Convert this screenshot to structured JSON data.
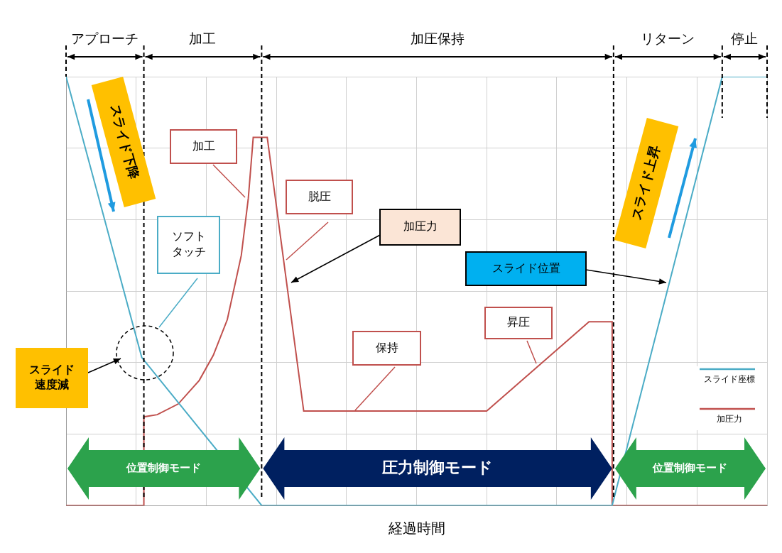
{
  "chart_data": {
    "type": "line",
    "x_label": "経過時間",
    "xlim": [
      0,
      10
    ],
    "xticks": [
      0,
      1,
      2,
      3,
      4,
      5,
      6,
      7,
      8,
      9,
      10
    ],
    "ylim": [
      0,
      6
    ],
    "yticks": [
      0,
      1,
      2,
      3,
      4,
      5,
      6
    ],
    "grid": true,
    "tick_labels": false,
    "legend": "bottom-right",
    "series": [
      {
        "name": "スライド座標",
        "color": "#4bacc6",
        "x": [
          0,
          1.08,
          2.79,
          7.79,
          9.36,
          10
        ],
        "values": [
          6,
          2.07,
          0,
          0,
          6,
          6
        ]
      },
      {
        "name": "加圧力",
        "color": "#c0504d",
        "x": [
          0,
          1.11,
          1.11,
          1.3,
          1.6,
          1.9,
          2.1,
          2.3,
          2.5,
          2.6,
          2.67,
          2.87,
          3.39,
          6.0,
          7.46,
          7.79,
          7.79,
          10
        ],
        "values": [
          0,
          0,
          1.24,
          1.27,
          1.42,
          1.75,
          2.1,
          2.6,
          3.5,
          4.3,
          5.15,
          5.15,
          1.32,
          1.32,
          2.57,
          2.57,
          0,
          0
        ]
      }
    ],
    "phases": [
      {
        "label": "アプローチ",
        "start": 0,
        "end": 1.11
      },
      {
        "label": "加工",
        "start": 1.11,
        "end": 2.79
      },
      {
        "label": "加圧保持",
        "start": 2.79,
        "end": 7.81
      },
      {
        "label": "リターン",
        "start": 7.81,
        "end": 9.36
      },
      {
        "label": "停止",
        "start": 9.36,
        "end": 10
      }
    ],
    "modes": [
      {
        "label": "位置制御モード",
        "start": 0,
        "end": 2.79,
        "color": "#2ca24c"
      },
      {
        "label": "圧力制御モード",
        "start": 2.79,
        "end": 7.81,
        "color": "#002060"
      },
      {
        "label": "位置制御モード",
        "start": 7.81,
        "end": 10,
        "color": "#2ca24c"
      }
    ],
    "annotations": [
      "加工",
      "ソフト\nタッチ",
      "脱圧",
      "加圧力",
      "保持",
      "昇圧",
      "スライド位置",
      "スライド\n速度減",
      "スライド下降",
      "スライド上昇"
    ]
  }
}
